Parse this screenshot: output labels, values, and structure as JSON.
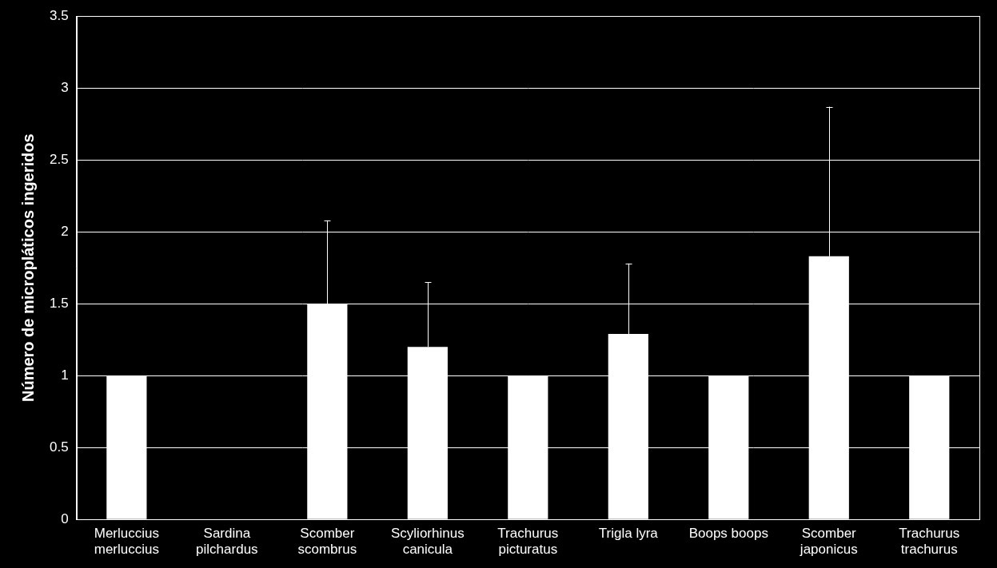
{
  "chart_data": {
    "type": "bar",
    "y_label": "Número de micropláticos ingeridos",
    "categories": [
      "Merluccius merluccius",
      "Sardina pilchardus",
      "Scomber scombrus",
      "Scyliorhinus canicula",
      "Trachurus picturatus",
      "Trigla lyra",
      "Boops boops",
      "Scomber japonicus",
      "Trachurus trachurus"
    ],
    "values": [
      1,
      0,
      1.5,
      1.2,
      1,
      1.29,
      1,
      1.83,
      1
    ],
    "errors": [
      null,
      null,
      0.58,
      0.45,
      null,
      0.49,
      null,
      1.04,
      null
    ],
    "color": "#ffffff",
    "ylim": [
      0,
      3.5
    ],
    "yticks": [
      0,
      0.5,
      1,
      1.5,
      2,
      2.5,
      3,
      3.5
    ],
    "grid": true
  }
}
